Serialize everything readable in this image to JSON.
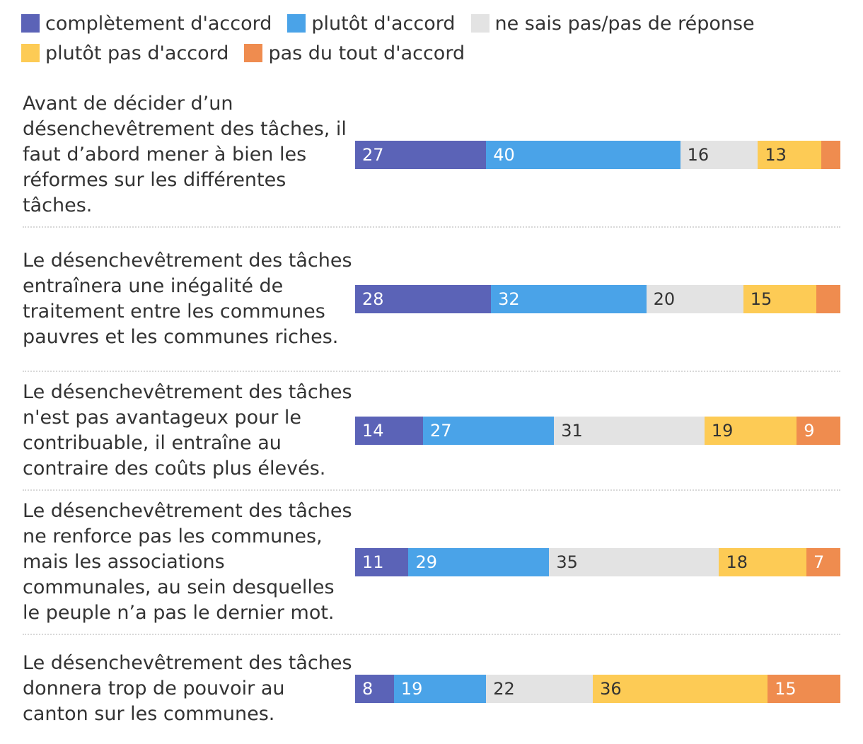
{
  "chart_data": {
    "type": "bar",
    "orientation": "horizontal",
    "stacked": true,
    "legend_position": "top",
    "series_names": [
      "complètement d'accord",
      "plutôt d'accord",
      "ne sais pas/pas de réponse",
      "plutôt pas d'accord",
      "pas du tout d'accord"
    ],
    "colors": [
      "#5b63b7",
      "#4aa3e8",
      "#e3e3e3",
      "#fdcb55",
      "#ef8c4f"
    ],
    "label_colors": [
      "#ffffff",
      "#ffffff",
      "#333333",
      "#333333",
      "#ffffff"
    ],
    "categories": [
      "Avant de décider d’un désenchevêtrement des tâches, il faut d’abord mener à bien les réformes sur les différentes tâches.",
      "Le désenchevêtrement des tâches entraînera une inégalité de traitement entre les communes pauvres et les communes riches.",
      "Le désenchevêtrement des tâches n'est pas avantageux pour le contribuable, il entraîne au contraire des coûts plus élevés.",
      "Le désenchevêtrement des tâches ne renforce pas les communes, mais les associations communales, au sein desquelles le peuple n’a pas le dernier mot.",
      "Le désenchevêtrement des tâches donnera trop de pouvoir au canton sur les communes."
    ],
    "values": [
      [
        27,
        40,
        16,
        13,
        4
      ],
      [
        28,
        32,
        20,
        15,
        5
      ],
      [
        14,
        27,
        31,
        19,
        9
      ],
      [
        11,
        29,
        35,
        18,
        7
      ],
      [
        8,
        19,
        22,
        36,
        15
      ]
    ],
    "labels": [
      [
        "27",
        "40",
        "16",
        "13",
        ""
      ],
      [
        "28",
        "32",
        "20",
        "15",
        ""
      ],
      [
        "14",
        "27",
        "31",
        "19",
        "9"
      ],
      [
        "11",
        "29",
        "35",
        "18",
        "7"
      ],
      [
        "8",
        "19",
        "22",
        "36",
        "15"
      ]
    ]
  }
}
